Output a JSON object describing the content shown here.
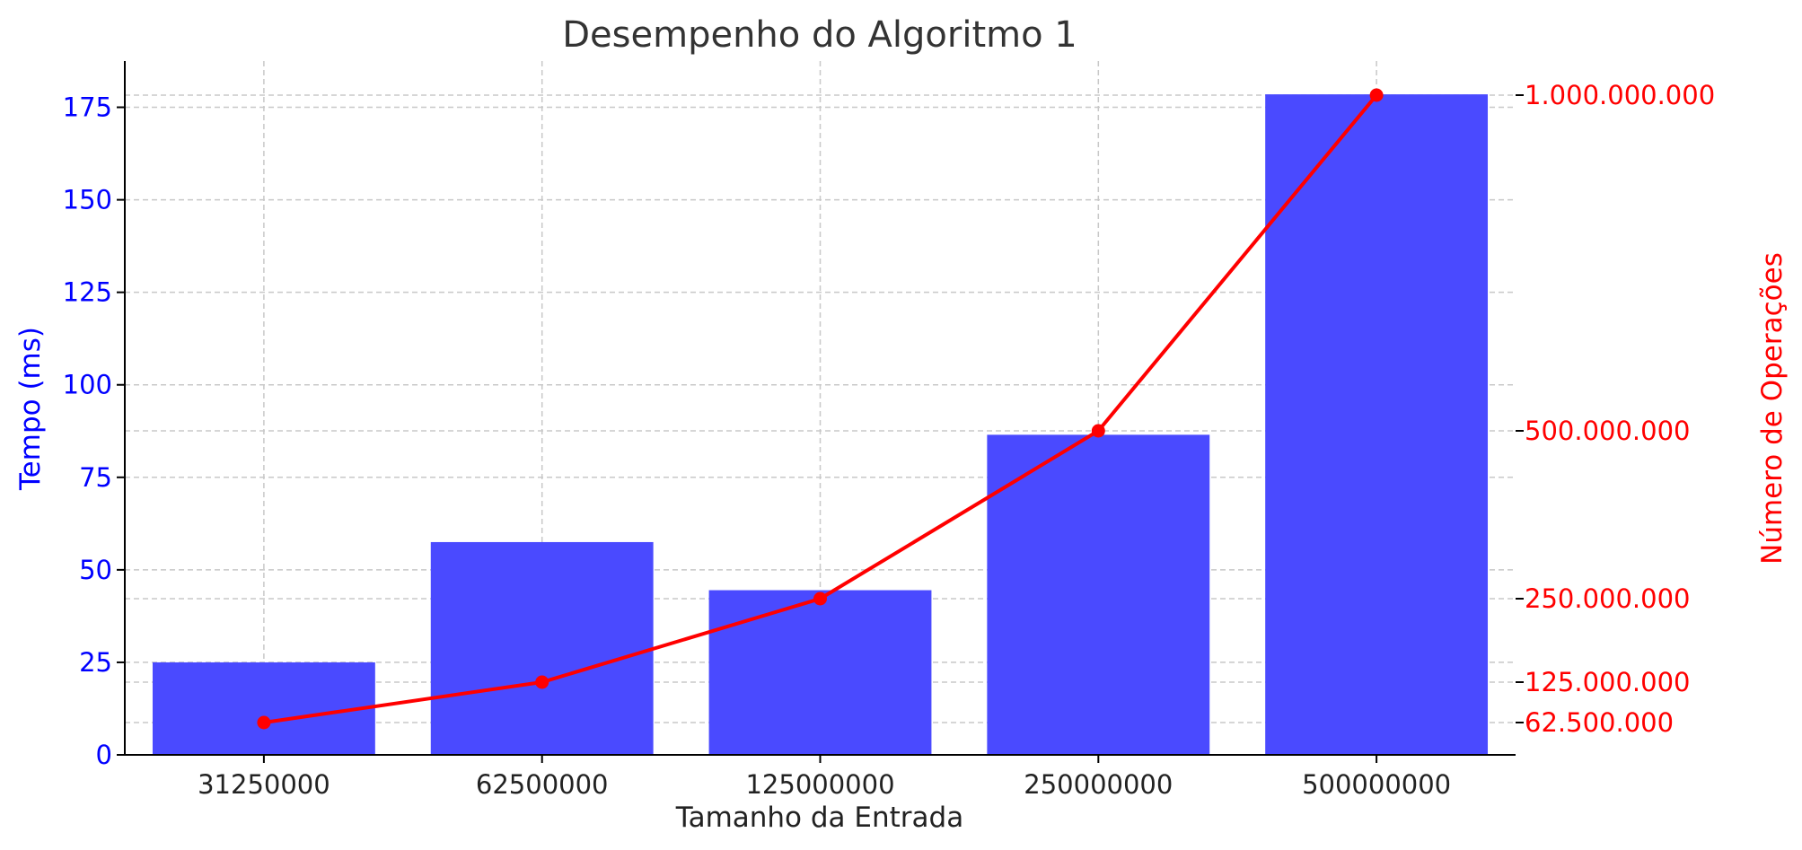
{
  "chart_data": {
    "type": "bar",
    "title": "Desempenho do Algoritmo 1",
    "xlabel": "Tamanho da Entrada",
    "categories": [
      "31250000",
      "62500000",
      "125000000",
      "250000000",
      "500000000"
    ],
    "left_axis": {
      "label": "Tempo (ms)",
      "ylim": [
        0,
        187.5
      ],
      "ticks": [
        0,
        25,
        50,
        75,
        100,
        125,
        150,
        175
      ],
      "color": "#0000ff"
    },
    "right_axis": {
      "label": "Número de Operações",
      "ticks": [
        62500000,
        125000000,
        250000000,
        500000000,
        1000000000
      ],
      "tick_labels": [
        "62.500.000",
        "125.000.000",
        "250.000.000",
        "500.000.000",
        "1.000.000.000"
      ],
      "color": "#ff0000"
    },
    "series": [
      {
        "type": "bar",
        "axis": "left",
        "color": "#4a4aff",
        "values": [
          25,
          57.5,
          44.5,
          86.5,
          178.5
        ]
      },
      {
        "type": "line",
        "axis": "right",
        "color": "#ff0000",
        "values": [
          62500000,
          125000000,
          250000000,
          500000000,
          1000000000
        ]
      }
    ],
    "grid": true
  }
}
